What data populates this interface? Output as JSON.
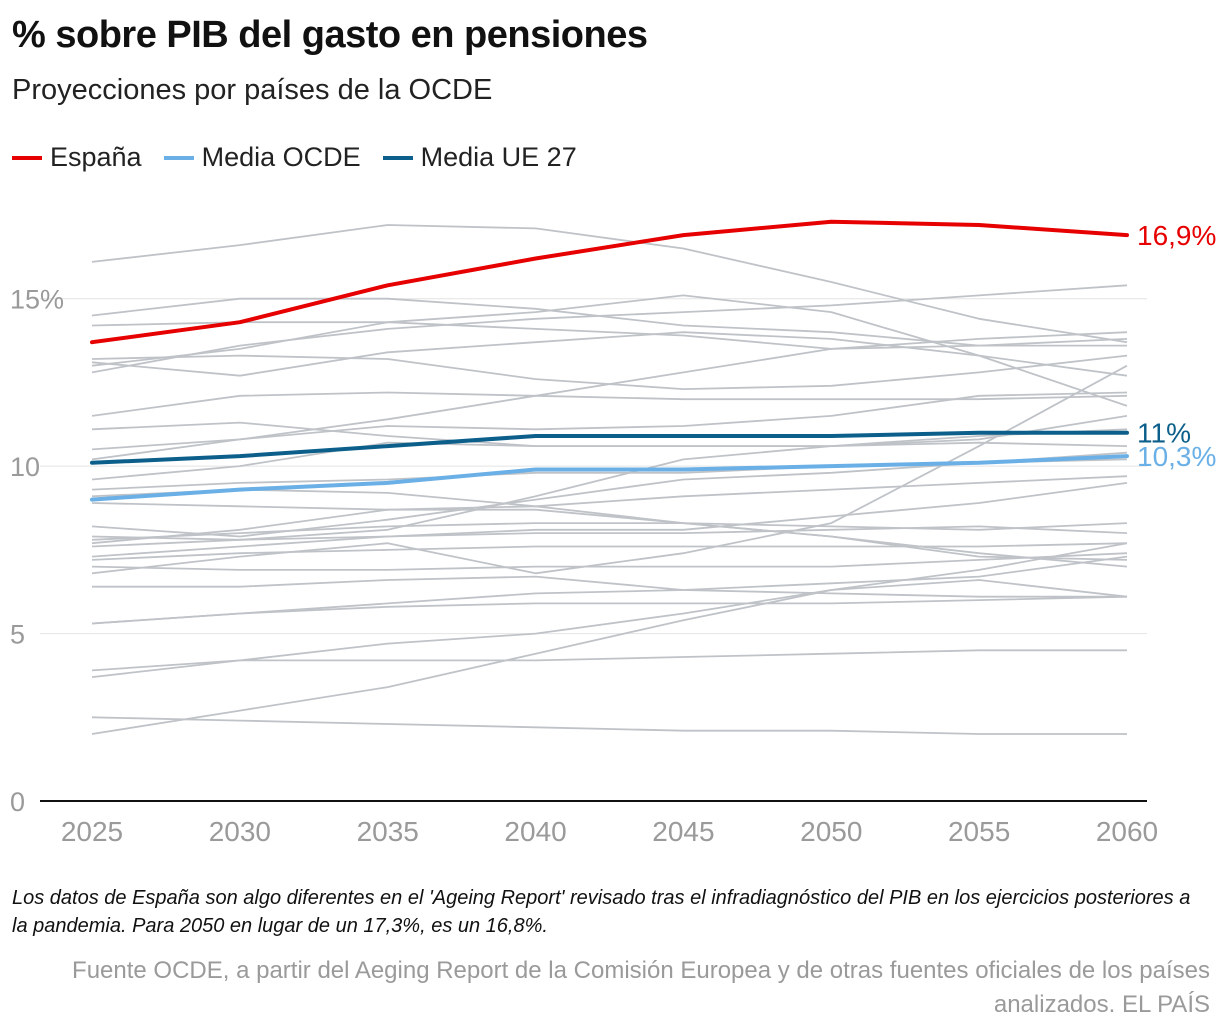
{
  "title": "% sobre PIB del gasto en pensiones",
  "subtitle": "Proyecciones por países de la OCDE",
  "legend": [
    {
      "label": "España",
      "color": "#e60000"
    },
    {
      "label": "Media OCDE",
      "color": "#6ab0e6"
    },
    {
      "label": "Media UE 27",
      "color": "#0b5f8a"
    }
  ],
  "note": "Los datos de España son algo diferentes en el 'Ageing Report' revisado tras el infradiagnóstico del PIB en los ejercicios posteriores a la pandemia. Para 2050 en lugar de un 17,3%, es un 16,8%.",
  "source": "Fuente OCDE, a partir del Aeging Report de la Comisión Europea y de otras fuentes oficiales de los países analizados. EL PAÍS",
  "chart_data": {
    "type": "line",
    "x": [
      2025,
      2030,
      2035,
      2040,
      2045,
      2050,
      2055,
      2060
    ],
    "xlim": [
      2025,
      2060
    ],
    "ylim": [
      0,
      17.5
    ],
    "yticks": [
      0,
      5,
      10,
      15
    ],
    "ytick_labels": [
      "0",
      "5",
      "10",
      "15%"
    ],
    "xtick_labels": [
      "2025",
      "2030",
      "2035",
      "2040",
      "2045",
      "2050",
      "2055",
      "2060"
    ],
    "grid": "horizontal",
    "series": [
      {
        "name": "España",
        "color": "#e60000",
        "values": [
          13.7,
          14.3,
          15.4,
          16.2,
          16.9,
          17.3,
          17.2,
          16.9
        ],
        "end_label": "16,9%"
      },
      {
        "name": "Media OCDE",
        "color": "#6ab0e6",
        "values": [
          9.0,
          9.3,
          9.5,
          9.9,
          9.9,
          10.0,
          10.1,
          10.3
        ],
        "end_label": "10,3%"
      },
      {
        "name": "Media UE 27",
        "color": "#0b5f8a",
        "values": [
          10.1,
          10.3,
          10.6,
          10.9,
          10.9,
          10.9,
          11.0,
          11.0
        ],
        "end_label": "11%"
      }
    ],
    "background_series_color": "#bfc3c8",
    "background_series": [
      [
        16.1,
        16.6,
        17.2,
        17.1,
        16.5,
        15.5,
        14.4,
        13.7
      ],
      [
        14.5,
        15.0,
        15.0,
        14.7,
        14.2,
        14.0,
        13.6,
        13.6
      ],
      [
        14.2,
        14.3,
        14.3,
        14.6,
        15.1,
        14.6,
        13.3,
        12.7
      ],
      [
        13.2,
        13.3,
        13.2,
        12.6,
        12.3,
        12.4,
        12.8,
        13.3
      ],
      [
        13.1,
        12.7,
        13.4,
        13.7,
        14.0,
        13.8,
        13.3,
        11.8
      ],
      [
        12.8,
        13.6,
        14.1,
        14.4,
        14.6,
        14.8,
        15.1,
        15.4
      ],
      [
        13.0,
        13.5,
        14.3,
        14.1,
        13.9,
        13.5,
        13.6,
        13.8
      ],
      [
        11.5,
        12.1,
        12.2,
        12.1,
        12.0,
        12.0,
        12.0,
        12.1
      ],
      [
        11.1,
        11.3,
        10.9,
        10.6,
        10.6,
        10.6,
        10.9,
        11.1
      ],
      [
        10.5,
        10.8,
        11.2,
        11.1,
        11.2,
        11.5,
        12.1,
        12.2
      ],
      [
        10.2,
        10.8,
        11.4,
        12.1,
        12.8,
        13.5,
        13.8,
        14.0
      ],
      [
        9.6,
        10.0,
        10.7,
        10.6,
        10.6,
        10.6,
        10.7,
        10.6
      ],
      [
        9.3,
        9.5,
        9.6,
        9.8,
        9.8,
        10.0,
        10.1,
        10.2
      ],
      [
        9.1,
        9.3,
        9.2,
        8.8,
        8.3,
        7.9,
        7.4,
        7.0
      ],
      [
        8.9,
        8.8,
        8.7,
        8.8,
        9.1,
        9.3,
        9.5,
        9.7
      ],
      [
        8.2,
        7.9,
        8.4,
        9.0,
        9.6,
        9.8,
        10.1,
        10.4
      ],
      [
        7.9,
        7.8,
        8.1,
        9.1,
        10.2,
        10.6,
        10.8,
        11.5
      ],
      [
        7.8,
        8.0,
        8.2,
        8.3,
        8.3,
        8.2,
        8.1,
        8.3
      ],
      [
        7.7,
        8.1,
        8.7,
        8.7,
        8.3,
        7.9,
        7.3,
        7.2
      ],
      [
        7.6,
        7.8,
        7.9,
        8.0,
        8.0,
        8.1,
        8.2,
        8.0
      ],
      [
        7.3,
        7.6,
        7.9,
        8.1,
        8.1,
        8.5,
        8.9,
        9.5
      ],
      [
        7.2,
        7.4,
        7.5,
        7.6,
        7.6,
        7.6,
        7.6,
        7.7
      ],
      [
        7.0,
        6.9,
        6.9,
        7.0,
        7.0,
        7.0,
        7.2,
        7.4
      ],
      [
        6.8,
        7.3,
        7.7,
        6.8,
        7.4,
        8.3,
        10.6,
        13.0
      ],
      [
        6.4,
        6.4,
        6.6,
        6.7,
        6.3,
        6.2,
        6.1,
        6.1
      ],
      [
        5.3,
        5.6,
        5.9,
        6.2,
        6.3,
        6.5,
        6.7,
        7.3
      ],
      [
        5.3,
        5.6,
        5.8,
        5.9,
        5.9,
        5.9,
        6.0,
        6.1
      ],
      [
        3.9,
        4.2,
        4.7,
        5.0,
        5.6,
        6.3,
        6.6,
        6.1
      ],
      [
        3.7,
        4.2,
        4.2,
        4.2,
        4.3,
        4.4,
        4.5,
        4.5
      ],
      [
        2.5,
        2.4,
        2.3,
        2.2,
        2.1,
        2.1,
        2.0,
        2.0
      ],
      [
        2.0,
        2.7,
        3.4,
        4.4,
        5.4,
        6.3,
        6.9,
        7.7
      ]
    ]
  }
}
